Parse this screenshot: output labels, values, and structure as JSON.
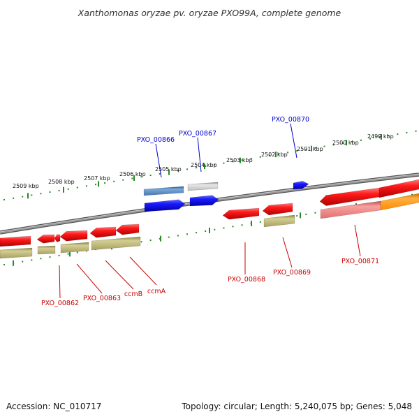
{
  "title": "Xanthomonas oryzae pv. oryzae PXO99A, complete genome",
  "footer": {
    "accession": "Accession: NC_010717",
    "summary": "Topology: circular; Length: 5,240,075 bp; Genes: 5,048"
  },
  "colors": {
    "backbone": "#808080",
    "ruler_ticks": "#2a8a2a",
    "label_upper": "#0000cc",
    "label_lower": "#cc0000",
    "cds_red": "#ff1a1a",
    "cds_blue": "#1a1aff",
    "gene_khaki": "#b8b070",
    "gene_pink": "#f08a8a",
    "gene_orange": "#ff9a10",
    "gene_steel": "#5580b0",
    "gene_gray": "#c4c4c4"
  },
  "scale_labels": [
    "2509 kbp",
    "2508 kbp",
    "2507 kbp",
    "2506 kbp",
    "2505 kbp",
    "2504 kbp",
    "2503 kbp",
    "2502 kbp",
    "2501 kbp",
    "2500 kbp",
    "2499 kbp"
  ],
  "labels": [
    {
      "text": "PXO_00866",
      "side": "upper"
    },
    {
      "text": "PXO_00867",
      "side": "upper"
    },
    {
      "text": "PXO_00870",
      "side": "upper"
    },
    {
      "text": "PXO_00862",
      "side": "lower"
    },
    {
      "text": "PXO_00863",
      "side": "lower"
    },
    {
      "text": "ccmB",
      "side": "lower"
    },
    {
      "text": "ccmA",
      "side": "lower"
    },
    {
      "text": "PXO_00868",
      "side": "lower"
    },
    {
      "text": "PXO_00869",
      "side": "lower"
    },
    {
      "text": "PXO_00871",
      "side": "lower"
    }
  ]
}
